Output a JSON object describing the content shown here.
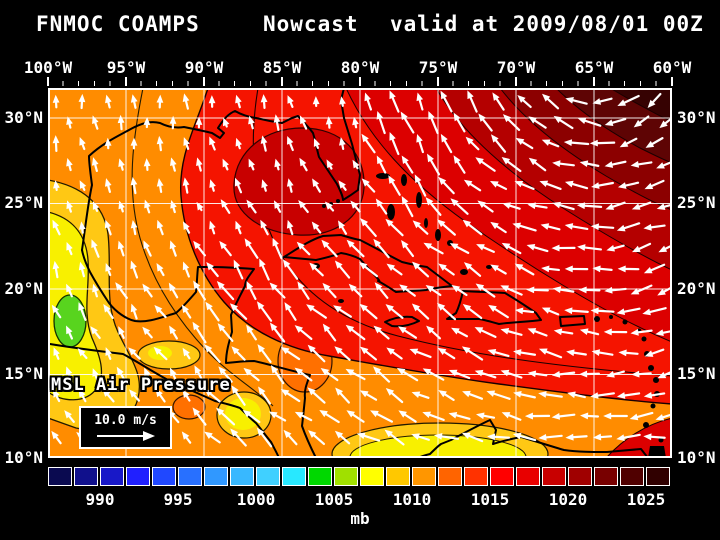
{
  "title": {
    "model": "FNMOC COAMPS",
    "product": "Nowcast",
    "valid": "valid at 2009/08/01 00Z"
  },
  "axes": {
    "longitude_labels": [
      "100°W",
      "95°W",
      "90°W",
      "85°W",
      "80°W",
      "75°W",
      "70°W",
      "65°W",
      "60°W"
    ],
    "latitude_labels": [
      "30°N",
      "25°N",
      "20°N",
      "15°N",
      "10°N"
    ]
  },
  "map": {
    "field_label": "MSL Air Pressure",
    "wind_scale_label": "10.0 m/s",
    "palette": {
      "base_orange": "#FF8C00",
      "deep_orange": "#FF7000",
      "gold": "#FFC814",
      "yellow": "#F8F000",
      "green": "#58D41E",
      "red": "#F51400",
      "gulf_cell_red": "#C80000",
      "dark_red_1": "#DC0000",
      "dark_red_2": "#B40000",
      "dark_red_3": "#8C0000",
      "dark_red_4": "#5E0404",
      "dark_red_5": "#360202",
      "corner_red": "#DC0000",
      "grid": "#FFFFFF",
      "coast": "#000000",
      "arrow": "#FFFFFF",
      "contour": "#1A0000",
      "contour_warm": "#221A00"
    }
  },
  "colorbar": {
    "unit": "mb",
    "tick_labels": [
      "990",
      "995",
      "1000",
      "1005",
      "1010",
      "1015",
      "1020",
      "1025"
    ],
    "swatches": [
      "#0A0A50",
      "#10108C",
      "#1818C8",
      "#2020FF",
      "#2048FF",
      "#2870FF",
      "#3098FF",
      "#38B8FF",
      "#40D0FF",
      "#28E8FF",
      "#00D800",
      "#A0E000",
      "#FFFF00",
      "#FFC800",
      "#FF9600",
      "#FF6400",
      "#FF3200",
      "#FF0000",
      "#E80000",
      "#C80000",
      "#A00000",
      "#780000",
      "#500000",
      "#300000"
    ]
  },
  "chart_data": {
    "type": "heatmap",
    "title": "FNMOC COAMPS Nowcast valid at 2009/08/01 00Z",
    "field": "MSL Air Pressure",
    "units": "mb",
    "lon_range": [
      "100°W",
      "60°W"
    ],
    "lat_range": [
      "10°N",
      "30°N"
    ],
    "grid_interval_deg": 5,
    "colorbar_levels_mb": [
      990,
      995,
      1000,
      1005,
      1010,
      1015,
      1020,
      1025
    ],
    "wind_reference_ms": 10.0,
    "pressure_features": [
      {
        "feature": "subtropical high (darkest shading)",
        "location": "northeast corner near 60-65°W, 30°N",
        "value_mb": "1022-1026"
      },
      {
        "feature": "ridge cell over eastern Gulf of Mexico",
        "location": "~86-81°W, 24-29°N",
        "value_mb": "1016-1018"
      },
      {
        "feature": "broad red field",
        "location": "western Atlantic and northern Caribbean",
        "value_mb": "1014-1016"
      },
      {
        "feature": "low pressure trough (green/yellow)",
        "location": "southern Mexico / east Pacific ~97°W, 19°N",
        "value_mb": "1006-1008"
      },
      {
        "feature": "yellow 1008-1010 patches",
        "location": "Honduras area and Colombia/Venezuela coast"
      },
      {
        "feature": "base orange field",
        "location": "Gulf of Mexico and western Caribbean",
        "value_mb": "1012-1014"
      }
    ],
    "wind_pattern": "White vectors show clockwise circulation around the Atlantic subtropical high: easterly trade winds (~10 m/s) across the Caribbean and tropical Atlantic, turning southerly over the western Gulf of Mexico and the east Pacific"
  }
}
